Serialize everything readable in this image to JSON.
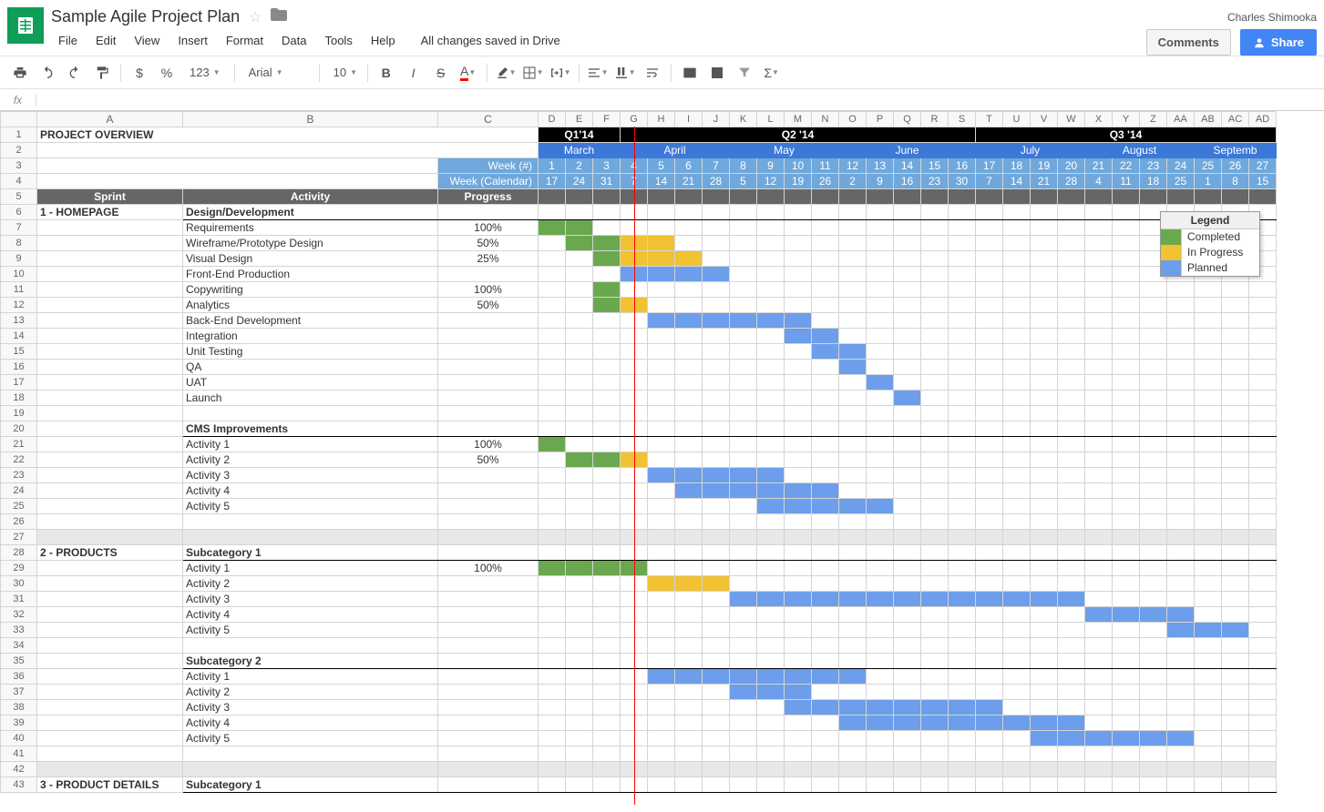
{
  "app": {
    "title": "Sample Agile Project Plan",
    "username": "Charles Shimooka",
    "save_status": "All changes saved in Drive",
    "comments_btn": "Comments",
    "share_btn": "Share"
  },
  "menubar": [
    "File",
    "Edit",
    "View",
    "Insert",
    "Format",
    "Data",
    "Tools",
    "Help"
  ],
  "toolbar": {
    "font": "Arial",
    "fontsize": "10",
    "currency": "$",
    "percent": "%",
    "decimals": "123"
  },
  "formula": {
    "fx": "fx"
  },
  "colors": {
    "completed": "#6aa84f",
    "in_progress": "#f1c232",
    "planned": "#6d9eeb",
    "quarter_bg": "#000000",
    "month_bg": "#3c78d8",
    "week_bg": "#6fa8dc",
    "header_row_bg": "#666666",
    "today_line": "#ff0000"
  },
  "legend": {
    "title": "Legend",
    "items": [
      {
        "label": "Completed",
        "color": "#6aa84f"
      },
      {
        "label": "In Progress",
        "color": "#f1c232"
      },
      {
        "label": "Planned",
        "color": "#6d9eeb"
      }
    ]
  },
  "columns": {
    "letters": [
      "A",
      "B",
      "C",
      "D",
      "E",
      "F",
      "G",
      "H",
      "I",
      "J",
      "K",
      "L",
      "M",
      "N",
      "O",
      "P",
      "Q",
      "R",
      "S",
      "T",
      "U",
      "V",
      "W",
      "X",
      "Y",
      "Z",
      "AA",
      "AB",
      "AC",
      "AD"
    ],
    "gantt_count": 27
  },
  "project_title": "PROJECT OVERVIEW",
  "headers": {
    "week_num_label": "Week (#)",
    "week_cal_label": "Week (Calendar)",
    "sprint": "Sprint",
    "activity": "Activity",
    "progress": "Progress"
  },
  "quarters": [
    {
      "label": "Q1'14",
      "span": 3
    },
    {
      "label": "Q2 '14",
      "span": 13
    },
    {
      "label": "Q3 '14",
      "span": 11
    }
  ],
  "months": [
    {
      "label": "March",
      "span": 3
    },
    {
      "label": "April",
      "span": 4
    },
    {
      "label": "May",
      "span": 4
    },
    {
      "label": "June",
      "span": 5
    },
    {
      "label": "July",
      "span": 4
    },
    {
      "label": "August",
      "span": 4
    },
    {
      "label": "Septemb",
      "span": 3
    }
  ],
  "week_numbers": [
    "1",
    "2",
    "3",
    "4",
    "5",
    "6",
    "7",
    "8",
    "9",
    "10",
    "11",
    "12",
    "13",
    "14",
    "15",
    "16",
    "17",
    "18",
    "19",
    "20",
    "21",
    "22",
    "23",
    "24",
    "25",
    "26",
    "27"
  ],
  "week_calendar": [
    "17",
    "24",
    "31",
    "7",
    "14",
    "21",
    "28",
    "5",
    "12",
    "19",
    "26",
    "2",
    "9",
    "16",
    "23",
    "30",
    "7",
    "14",
    "21",
    "28",
    "4",
    "11",
    "18",
    "25",
    "1",
    "8",
    "15"
  ],
  "today_week_index": 3.5,
  "rows": [
    {
      "num": 6,
      "sprint": "1 - HOMEPAGE",
      "activity": "Design/Development",
      "section": true
    },
    {
      "num": 7,
      "activity": "Requirements",
      "progress": "100%",
      "bars": [
        {
          "start": 0,
          "span": 2,
          "type": "completed"
        }
      ]
    },
    {
      "num": 8,
      "activity": "Wireframe/Prototype Design",
      "progress": "50%",
      "bars": [
        {
          "start": 1,
          "span": 2,
          "type": "completed"
        },
        {
          "start": 3,
          "span": 2,
          "type": "progress"
        }
      ]
    },
    {
      "num": 9,
      "activity": "Visual Design",
      "progress": "25%",
      "bars": [
        {
          "start": 2,
          "span": 1,
          "type": "completed"
        },
        {
          "start": 3,
          "span": 3,
          "type": "progress"
        }
      ]
    },
    {
      "num": 10,
      "activity": "Front-End Production",
      "bars": [
        {
          "start": 3,
          "span": 4,
          "type": "planned"
        }
      ]
    },
    {
      "num": 11,
      "activity": "Copywriting",
      "progress": "100%",
      "bars": [
        {
          "start": 2,
          "span": 1,
          "type": "completed"
        }
      ]
    },
    {
      "num": 12,
      "activity": "Analytics",
      "progress": "50%",
      "bars": [
        {
          "start": 2,
          "span": 1,
          "type": "completed"
        },
        {
          "start": 3,
          "span": 1,
          "type": "progress"
        }
      ]
    },
    {
      "num": 13,
      "activity": "Back-End Development",
      "bars": [
        {
          "start": 4,
          "span": 6,
          "type": "planned"
        }
      ]
    },
    {
      "num": 14,
      "activity": "Integration",
      "bars": [
        {
          "start": 9,
          "span": 2,
          "type": "planned"
        }
      ]
    },
    {
      "num": 15,
      "activity": "Unit Testing",
      "bars": [
        {
          "start": 10,
          "span": 2,
          "type": "planned"
        }
      ]
    },
    {
      "num": 16,
      "activity": "QA",
      "bars": [
        {
          "start": 11,
          "span": 1,
          "type": "planned"
        }
      ]
    },
    {
      "num": 17,
      "activity": "UAT",
      "bars": [
        {
          "start": 12,
          "span": 1,
          "type": "planned"
        }
      ]
    },
    {
      "num": 18,
      "activity": "Launch",
      "bars": [
        {
          "start": 13,
          "span": 1,
          "type": "planned"
        }
      ]
    },
    {
      "num": 19
    },
    {
      "num": 20,
      "activity": "CMS Improvements",
      "section": true
    },
    {
      "num": 21,
      "activity": "Activity 1",
      "progress": "100%",
      "bars": [
        {
          "start": 0,
          "span": 1,
          "type": "completed"
        }
      ]
    },
    {
      "num": 22,
      "activity": "Activity 2",
      "progress": "50%",
      "bars": [
        {
          "start": 1,
          "span": 2,
          "type": "completed"
        },
        {
          "start": 3,
          "span": 1,
          "type": "progress"
        }
      ]
    },
    {
      "num": 23,
      "activity": "Activity 3",
      "bars": [
        {
          "start": 4,
          "span": 5,
          "type": "planned"
        }
      ]
    },
    {
      "num": 24,
      "activity": "Activity 4",
      "bars": [
        {
          "start": 5,
          "span": 6,
          "type": "planned"
        }
      ]
    },
    {
      "num": 25,
      "activity": "Activity 5",
      "bars": [
        {
          "start": 8,
          "span": 5,
          "type": "planned"
        }
      ]
    },
    {
      "num": 26
    },
    {
      "num": 27,
      "spacer": true
    },
    {
      "num": 28,
      "sprint": "2 - PRODUCTS",
      "activity": "Subcategory 1",
      "section": true
    },
    {
      "num": 29,
      "activity": "Activity 1",
      "progress": "100%",
      "bars": [
        {
          "start": 0,
          "span": 4,
          "type": "completed"
        }
      ]
    },
    {
      "num": 30,
      "activity": "Activity 2",
      "bars": [
        {
          "start": 4,
          "span": 3,
          "type": "progress"
        }
      ]
    },
    {
      "num": 31,
      "activity": "Activity 3",
      "bars": [
        {
          "start": 7,
          "span": 13,
          "type": "planned"
        }
      ]
    },
    {
      "num": 32,
      "activity": "Activity 4",
      "bars": [
        {
          "start": 20,
          "span": 4,
          "type": "planned"
        }
      ]
    },
    {
      "num": 33,
      "activity": "Activity 5",
      "bars": [
        {
          "start": 23,
          "span": 3,
          "type": "planned"
        }
      ]
    },
    {
      "num": 34
    },
    {
      "num": 35,
      "activity": "Subcategory 2",
      "section": true
    },
    {
      "num": 36,
      "activity": "Activity 1",
      "bars": [
        {
          "start": 4,
          "span": 8,
          "type": "planned"
        }
      ]
    },
    {
      "num": 37,
      "activity": "Activity 2",
      "bars": [
        {
          "start": 7,
          "span": 3,
          "type": "planned"
        }
      ]
    },
    {
      "num": 38,
      "activity": "Activity 3",
      "bars": [
        {
          "start": 9,
          "span": 8,
          "type": "planned"
        }
      ]
    },
    {
      "num": 39,
      "activity": "Activity 4",
      "bars": [
        {
          "start": 11,
          "span": 9,
          "type": "planned"
        }
      ]
    },
    {
      "num": 40,
      "activity": "Activity 5",
      "bars": [
        {
          "start": 18,
          "span": 6,
          "type": "planned"
        }
      ]
    },
    {
      "num": 41
    },
    {
      "num": 42,
      "spacer": true
    },
    {
      "num": 43,
      "sprint": "3 - PRODUCT DETAILS",
      "activity": "Subcategory 1",
      "section": true
    }
  ]
}
